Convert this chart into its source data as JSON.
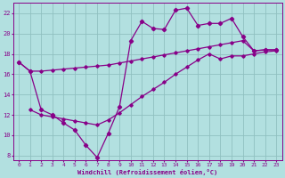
{
  "background_color": "#b2e0e0",
  "grid_color": "#90c0c0",
  "line_color": "#880088",
  "xlabel": "Windchill (Refroidissement éolien,°C)",
  "xlim": [
    -0.5,
    23.5
  ],
  "ylim": [
    7.5,
    23.0
  ],
  "xticks": [
    0,
    1,
    2,
    3,
    4,
    5,
    6,
    7,
    8,
    9,
    10,
    11,
    12,
    13,
    14,
    15,
    16,
    17,
    18,
    19,
    20,
    21,
    22,
    23
  ],
  "yticks": [
    8,
    10,
    12,
    14,
    16,
    18,
    20,
    22
  ],
  "series1_x": [
    0,
    1,
    2,
    3,
    4,
    5,
    6,
    7,
    8,
    9,
    10,
    11,
    12,
    13,
    14,
    15,
    16,
    17,
    18,
    19,
    20,
    21,
    22,
    23
  ],
  "series1_y": [
    17.2,
    16.3,
    16.3,
    16.4,
    16.5,
    16.6,
    16.7,
    16.8,
    16.9,
    17.1,
    17.3,
    17.5,
    17.7,
    17.9,
    18.1,
    18.3,
    18.5,
    18.7,
    18.9,
    19.1,
    19.3,
    18.3,
    18.4,
    18.4
  ],
  "series2_x": [
    0,
    1,
    2,
    3,
    4,
    5,
    6,
    7,
    8,
    9,
    10,
    11,
    12,
    13,
    14,
    15,
    16,
    17,
    18,
    19,
    20,
    21,
    22,
    23
  ],
  "series2_y": [
    17.2,
    16.3,
    12.5,
    12.0,
    11.2,
    10.5,
    9.0,
    7.8,
    10.2,
    12.8,
    19.3,
    21.2,
    20.5,
    20.4,
    22.3,
    22.5,
    20.8,
    21.0,
    21.0,
    21.5,
    19.7,
    18.3,
    18.4,
    18.4
  ],
  "series3_x": [
    1,
    2,
    3,
    4,
    5,
    6,
    7,
    8,
    9,
    10,
    11,
    12,
    13,
    14,
    15,
    16,
    17,
    18,
    19,
    20,
    21,
    22,
    23
  ],
  "series3_y": [
    12.5,
    12.0,
    11.8,
    11.6,
    11.4,
    11.2,
    11.0,
    11.5,
    12.2,
    13.0,
    13.8,
    14.5,
    15.2,
    16.0,
    16.7,
    17.4,
    18.0,
    17.5,
    17.8,
    17.8,
    18.0,
    18.2,
    18.3
  ]
}
